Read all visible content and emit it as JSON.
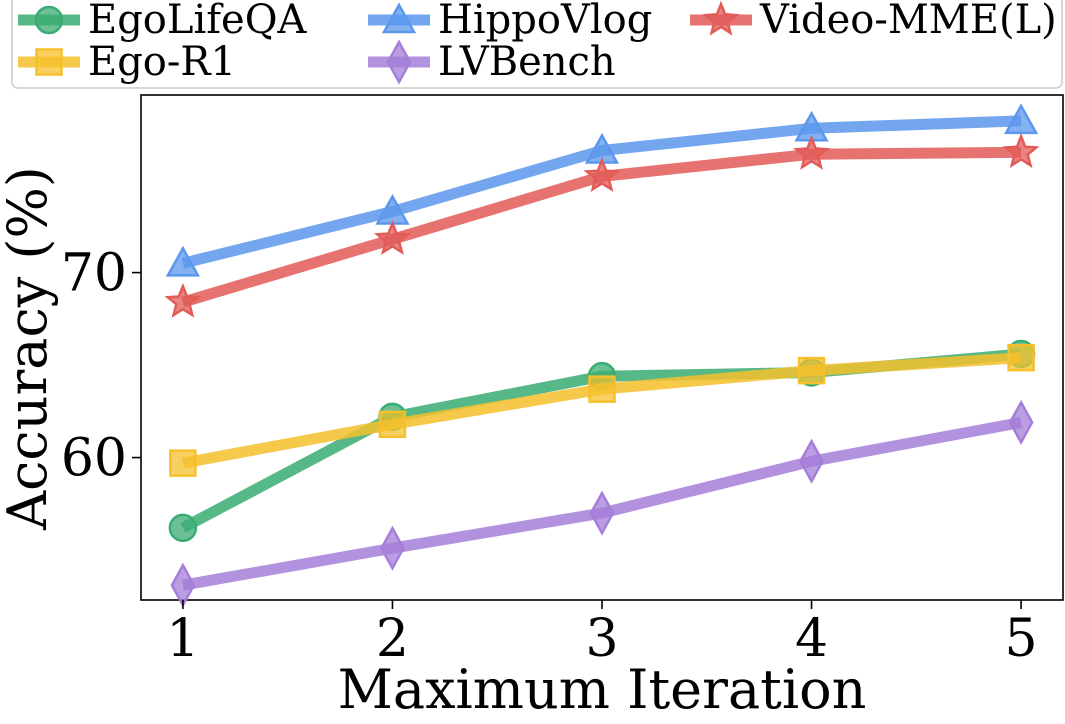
{
  "chart_data": {
    "type": "line",
    "title": "",
    "xlabel": "Maximum Iteration",
    "ylabel": "Accuracy (%)",
    "x": [
      1,
      2,
      3,
      4,
      5
    ],
    "xticks": [
      "1",
      "2",
      "3",
      "4",
      "5"
    ],
    "yticks": [
      "60",
      "70"
    ],
    "xlim": [
      0.8,
      5.2
    ],
    "ylim": [
      52.3,
      79.6
    ],
    "grid": false,
    "legend_position": "top",
    "series": [
      {
        "name": "EgoLifeQA",
        "color": "#3aac72",
        "marker": "circle",
        "values": [
          56.2,
          62.2,
          64.4,
          64.6,
          65.6
        ]
      },
      {
        "name": "Ego-R1",
        "color": "#f5c02c",
        "marker": "square",
        "values": [
          59.7,
          61.8,
          63.7,
          64.7,
          65.4
        ]
      },
      {
        "name": "HippoVlog",
        "color": "#5b97ec",
        "marker": "triangle",
        "values": [
          70.5,
          73.3,
          76.6,
          77.8,
          78.2
        ]
      },
      {
        "name": "LVBench",
        "color": "#a47ed8",
        "marker": "diamond",
        "values": [
          53.1,
          55.1,
          57.0,
          59.8,
          61.9
        ]
      },
      {
        "name": "Video-MME(L)",
        "color": "#e25b57",
        "marker": "star",
        "values": [
          68.4,
          71.8,
          75.2,
          76.4,
          76.5
        ]
      }
    ]
  }
}
